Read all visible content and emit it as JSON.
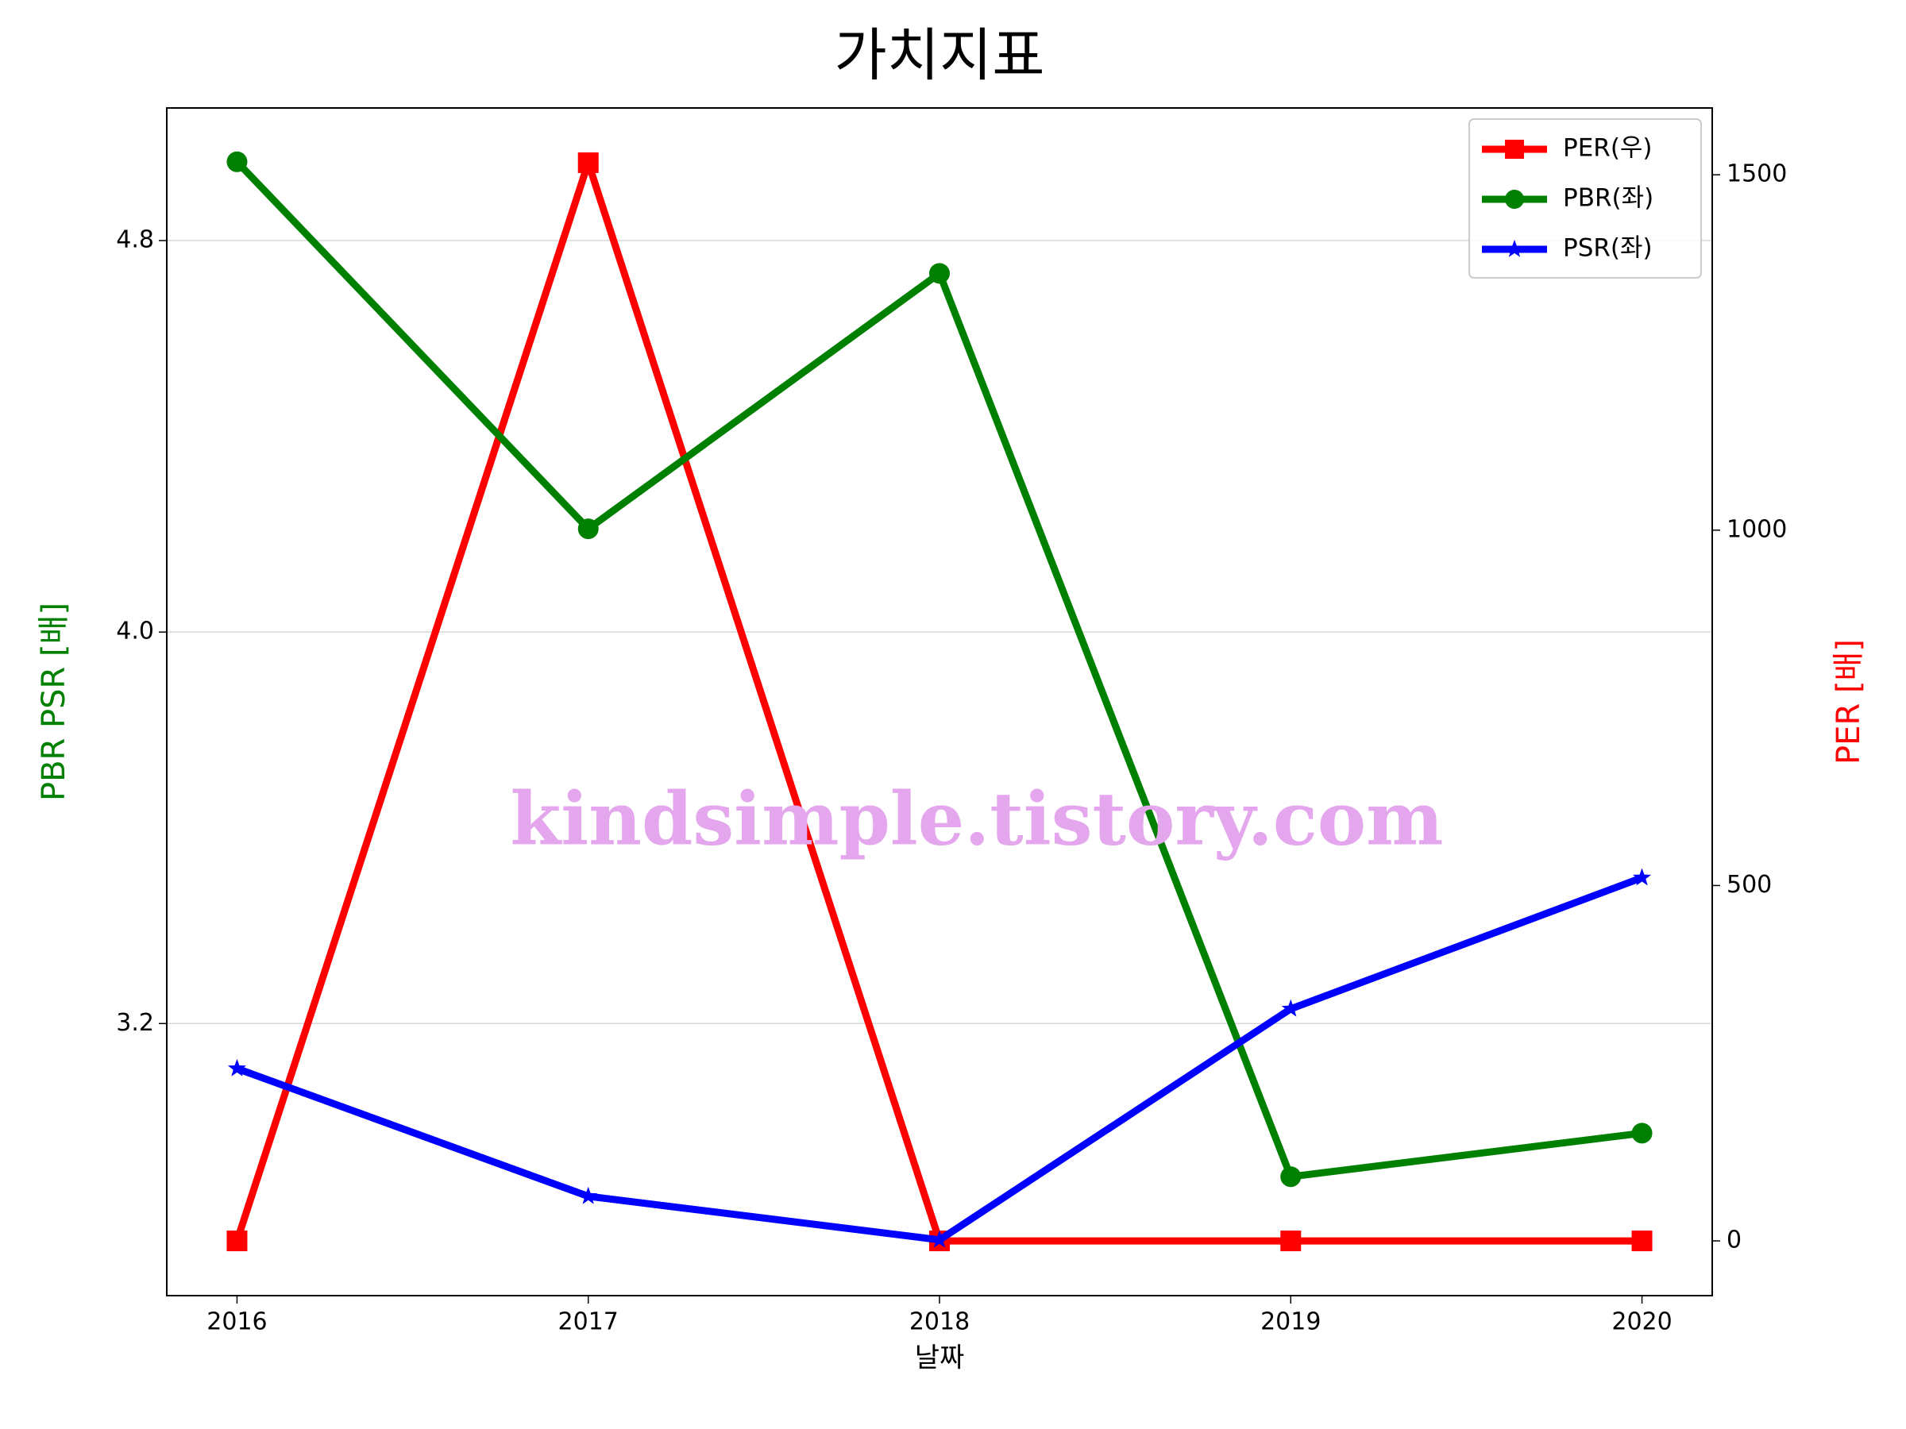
{
  "chart_data": {
    "type": "line",
    "title": "가치지표",
    "xlabel": "날짜",
    "ylabel": "PBR PSR [배]",
    "y2label": "PER [배]",
    "ylabel_color": "green",
    "y2label_color": "red",
    "annotation": "kindsimple.tistory.com",
    "annotation_color": "#e4a6ec",
    "x": [
      2016,
      2017,
      2018,
      2019,
      2020
    ],
    "xlim": [
      2015.8,
      2020.2
    ],
    "xticks": [
      2016,
      2017,
      2018,
      2019,
      2020
    ],
    "ylim": [
      2.644,
      5.071
    ],
    "yticks": [
      3.2,
      {
        "value": 4,
        "label": "4.0"
      },
      4.8
    ],
    "y2lim": [
      -77,
      1594
    ],
    "y2ticks": [
      0,
      500,
      1000,
      1500
    ],
    "grid": true,
    "legend": "upper right",
    "series": [
      {
        "name": "PER(우)",
        "color": "red",
        "marker": "square",
        "axis": "y2",
        "values": [
          0,
          1517,
          0,
          0,
          0
        ]
      },
      {
        "name": "PBR(좌)",
        "color": "green",
        "marker": "circle",
        "values": [
          4.961,
          4.211,
          4.733,
          2.887,
          2.976
        ]
      },
      {
        "name": "PSR(좌)",
        "color": "blue",
        "marker": "star",
        "values": [
          3.108,
          2.847,
          2.758,
          3.23,
          3.498
        ]
      }
    ]
  }
}
